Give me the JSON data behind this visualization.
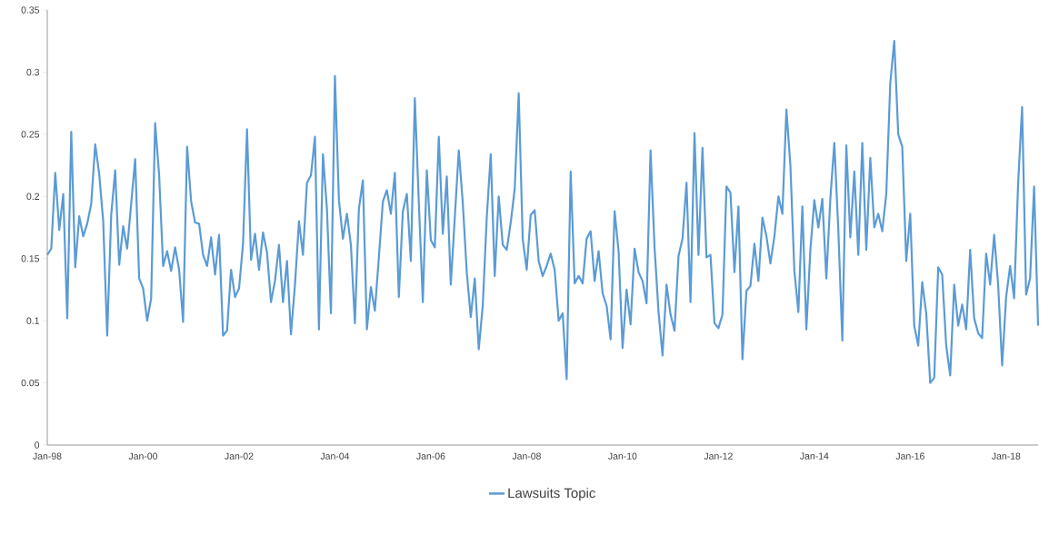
{
  "chart_data": {
    "type": "line",
    "x": [
      "1998-01",
      "1998-02",
      "1998-03",
      "1998-04",
      "1998-05",
      "1998-06",
      "1998-07",
      "1998-08",
      "1998-09",
      "1998-10",
      "1998-11",
      "1998-12",
      "1999-01",
      "1999-02",
      "1999-03",
      "1999-04",
      "1999-05",
      "1999-06",
      "1999-07",
      "1999-08",
      "1999-09",
      "1999-10",
      "1999-11",
      "1999-12",
      "2000-01",
      "2000-02",
      "2000-03",
      "2000-04",
      "2000-05",
      "2000-06",
      "2000-07",
      "2000-08",
      "2000-09",
      "2000-10",
      "2000-11",
      "2000-12",
      "2001-01",
      "2001-02",
      "2001-03",
      "2001-04",
      "2001-05",
      "2001-06",
      "2001-07",
      "2001-08",
      "2001-09",
      "2001-10",
      "2001-11",
      "2001-12",
      "2002-01",
      "2002-02",
      "2002-03",
      "2002-04",
      "2002-05",
      "2002-06",
      "2002-07",
      "2002-08",
      "2002-09",
      "2002-10",
      "2002-11",
      "2002-12",
      "2003-01",
      "2003-02",
      "2003-03",
      "2003-04",
      "2003-05",
      "2003-06",
      "2003-07",
      "2003-08",
      "2003-09",
      "2003-10",
      "2003-11",
      "2003-12",
      "2004-01",
      "2004-02",
      "2004-03",
      "2004-04",
      "2004-05",
      "2004-06",
      "2004-07",
      "2004-08",
      "2004-09",
      "2004-10",
      "2004-11",
      "2004-12",
      "2005-01",
      "2005-02",
      "2005-03",
      "2005-04",
      "2005-05",
      "2005-06",
      "2005-07",
      "2005-08",
      "2005-09",
      "2005-10",
      "2005-11",
      "2005-12",
      "2006-01",
      "2006-02",
      "2006-03",
      "2006-04",
      "2006-05",
      "2006-06",
      "2006-07",
      "2006-08",
      "2006-09",
      "2006-10",
      "2006-11",
      "2006-12",
      "2007-01",
      "2007-02",
      "2007-03",
      "2007-04",
      "2007-05",
      "2007-06",
      "2007-07",
      "2007-08",
      "2007-09",
      "2007-10",
      "2007-11",
      "2007-12",
      "2008-01",
      "2008-02",
      "2008-03",
      "2008-04",
      "2008-05",
      "2008-06",
      "2008-07",
      "2008-08",
      "2008-09",
      "2008-10",
      "2008-11",
      "2008-12",
      "2009-01",
      "2009-02",
      "2009-03",
      "2009-04",
      "2009-05",
      "2009-06",
      "2009-07",
      "2009-08",
      "2009-09",
      "2009-10",
      "2009-11",
      "2009-12",
      "2010-01",
      "2010-02",
      "2010-03",
      "2010-04",
      "2010-05",
      "2010-06",
      "2010-07",
      "2010-08",
      "2010-09",
      "2010-10",
      "2010-11",
      "2010-12",
      "2011-01",
      "2011-02",
      "2011-03",
      "2011-04",
      "2011-05",
      "2011-06",
      "2011-07",
      "2011-08",
      "2011-09",
      "2011-10",
      "2011-11",
      "2011-12",
      "2012-01",
      "2012-02",
      "2012-03",
      "2012-04",
      "2012-05",
      "2012-06",
      "2012-07",
      "2012-08",
      "2012-09",
      "2012-10",
      "2012-11",
      "2012-12",
      "2013-01",
      "2013-02",
      "2013-03",
      "2013-04",
      "2013-05",
      "2013-06",
      "2013-07",
      "2013-08",
      "2013-09",
      "2013-10",
      "2013-11",
      "2013-12",
      "2014-01",
      "2014-02",
      "2014-03",
      "2014-04",
      "2014-05",
      "2014-06",
      "2014-07",
      "2014-08",
      "2014-09",
      "2014-10",
      "2014-11",
      "2014-12",
      "2015-01",
      "2015-02",
      "2015-03",
      "2015-04",
      "2015-05",
      "2015-06",
      "2015-07",
      "2015-08",
      "2015-09",
      "2015-10",
      "2015-11",
      "2015-12",
      "2016-01",
      "2016-02",
      "2016-03",
      "2016-04",
      "2016-05",
      "2016-06",
      "2016-07",
      "2016-08",
      "2016-09",
      "2016-10",
      "2016-11",
      "2016-12",
      "2017-01",
      "2017-02",
      "2017-03",
      "2017-04",
      "2017-05",
      "2017-06",
      "2017-07",
      "2017-08",
      "2017-09",
      "2017-10",
      "2017-11",
      "2017-12",
      "2018-01",
      "2018-02",
      "2018-03",
      "2018-04",
      "2018-05",
      "2018-06",
      "2018-07",
      "2018-08",
      "2018-09"
    ],
    "series": [
      {
        "name": "Lawsuits Topic",
        "color": "#5b9bd5",
        "values": [
          0.153,
          0.158,
          0.219,
          0.173,
          0.202,
          0.102,
          0.252,
          0.143,
          0.184,
          0.168,
          0.178,
          0.194,
          0.242,
          0.218,
          0.18,
          0.088,
          0.185,
          0.221,
          0.145,
          0.176,
          0.158,
          0.194,
          0.23,
          0.134,
          0.126,
          0.1,
          0.118,
          0.259,
          0.217,
          0.144,
          0.156,
          0.14,
          0.159,
          0.141,
          0.099,
          0.24,
          0.196,
          0.179,
          0.178,
          0.153,
          0.144,
          0.167,
          0.137,
          0.169,
          0.088,
          0.092,
          0.141,
          0.119,
          0.126,
          0.162,
          0.254,
          0.149,
          0.17,
          0.141,
          0.171,
          0.155,
          0.115,
          0.132,
          0.161,
          0.115,
          0.148,
          0.089,
          0.129,
          0.18,
          0.153,
          0.211,
          0.217,
          0.248,
          0.093,
          0.234,
          0.19,
          0.106,
          0.297,
          0.197,
          0.166,
          0.186,
          0.161,
          0.098,
          0.19,
          0.213,
          0.093,
          0.127,
          0.108,
          0.151,
          0.196,
          0.205,
          0.186,
          0.219,
          0.119,
          0.188,
          0.202,
          0.148,
          0.279,
          0.195,
          0.115,
          0.221,
          0.165,
          0.159,
          0.248,
          0.17,
          0.216,
          0.129,
          0.183,
          0.237,
          0.195,
          0.139,
          0.103,
          0.134,
          0.077,
          0.112,
          0.183,
          0.234,
          0.136,
          0.2,
          0.161,
          0.157,
          0.179,
          0.206,
          0.283,
          0.166,
          0.141,
          0.185,
          0.189,
          0.148,
          0.136,
          0.144,
          0.154,
          0.141,
          0.1,
          0.106,
          0.053,
          0.22,
          0.13,
          0.136,
          0.13,
          0.166,
          0.172,
          0.132,
          0.156,
          0.122,
          0.112,
          0.085,
          0.188,
          0.156,
          0.078,
          0.125,
          0.097,
          0.158,
          0.139,
          0.132,
          0.114,
          0.237,
          0.159,
          0.107,
          0.072,
          0.129,
          0.105,
          0.092,
          0.152,
          0.166,
          0.211,
          0.115,
          0.251,
          0.153,
          0.239,
          0.151,
          0.153,
          0.098,
          0.094,
          0.105,
          0.208,
          0.203,
          0.139,
          0.192,
          0.069,
          0.124,
          0.128,
          0.162,
          0.132,
          0.183,
          0.168,
          0.146,
          0.168,
          0.2,
          0.186,
          0.27,
          0.225,
          0.14,
          0.107,
          0.192,
          0.093,
          0.157,
          0.197,
          0.175,
          0.198,
          0.134,
          0.198,
          0.243,
          0.173,
          0.084,
          0.241,
          0.167,
          0.22,
          0.153,
          0.243,
          0.157,
          0.231,
          0.175,
          0.186,
          0.172,
          0.202,
          0.291,
          0.325,
          0.25,
          0.24,
          0.148,
          0.186,
          0.096,
          0.08,
          0.131,
          0.106,
          0.05,
          0.054,
          0.143,
          0.137,
          0.08,
          0.056,
          0.129,
          0.096,
          0.113,
          0.093,
          0.157,
          0.102,
          0.09,
          0.086,
          0.154,
          0.129,
          0.169,
          0.129,
          0.064,
          0.119,
          0.144,
          0.118,
          0.21,
          0.272,
          0.121,
          0.134,
          0.208,
          0.096
        ]
      }
    ],
    "xlim": [
      "1998-01",
      "2018-09"
    ],
    "xticks": [
      {
        "value": "1998-01",
        "label": "Jan-98"
      },
      {
        "value": "2000-01",
        "label": "Jan-00"
      },
      {
        "value": "2002-01",
        "label": "Jan-02"
      },
      {
        "value": "2004-01",
        "label": "Jan-04"
      },
      {
        "value": "2006-01",
        "label": "Jan-06"
      },
      {
        "value": "2008-01",
        "label": "Jan-08"
      },
      {
        "value": "2010-01",
        "label": "Jan-10"
      },
      {
        "value": "2012-01",
        "label": "Jan-12"
      },
      {
        "value": "2014-01",
        "label": "Jan-14"
      },
      {
        "value": "2016-01",
        "label": "Jan-16"
      },
      {
        "value": "2018-01",
        "label": "Jan-18"
      }
    ],
    "ylim": [
      0,
      0.35
    ],
    "yticks": [
      0,
      0.05,
      0.1,
      0.15,
      0.2,
      0.25,
      0.3,
      0.35
    ],
    "legend": "bottom"
  }
}
